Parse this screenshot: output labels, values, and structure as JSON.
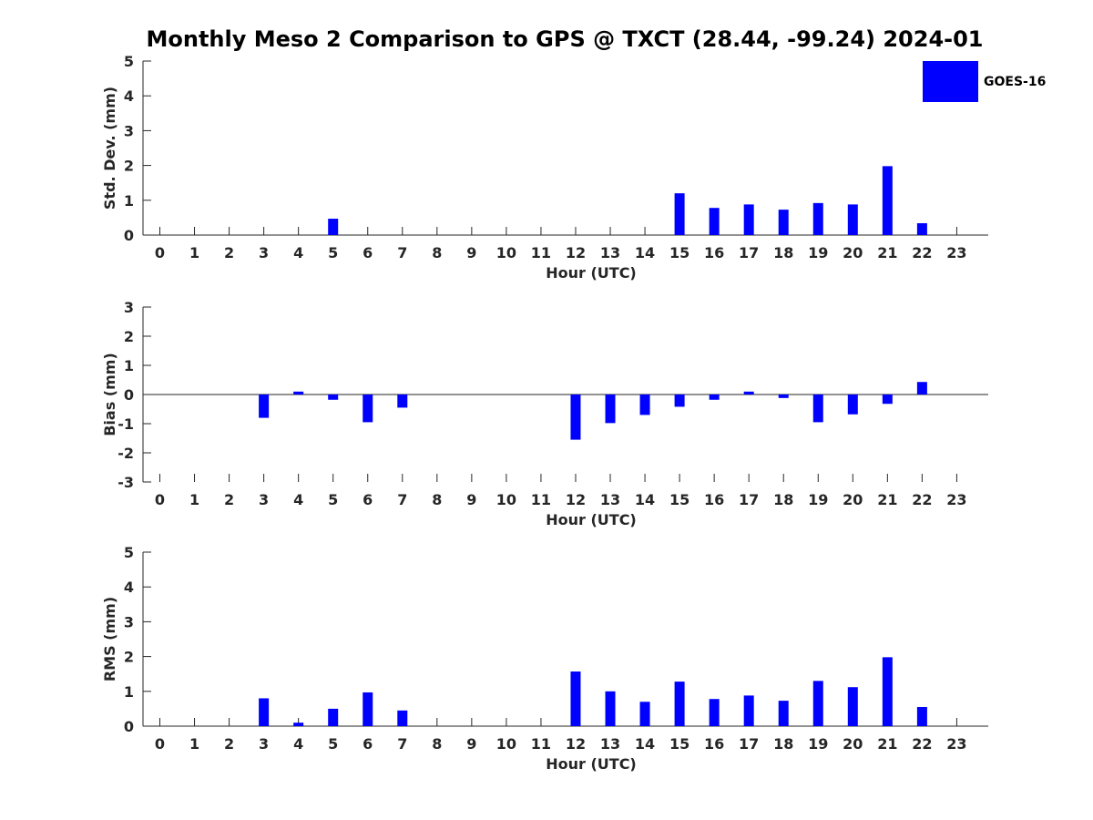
{
  "title": "Monthly Meso 2 Comparison to GPS @ TXCT (28.44, -99.24) 2024-01",
  "legend": {
    "label": "GOES-16",
    "color": "#0000ff",
    "position": "top-right"
  },
  "chart_data": [
    {
      "type": "bar",
      "xlabel": "Hour (UTC)",
      "ylabel": "Std. Dev. (mm)",
      "ylim": [
        0,
        5
      ],
      "yticks": [
        0,
        1,
        2,
        3,
        4,
        5
      ],
      "categories": [
        "0",
        "1",
        "2",
        "3",
        "4",
        "5",
        "6",
        "7",
        "8",
        "9",
        "10",
        "11",
        "12",
        "13",
        "14",
        "15",
        "16",
        "17",
        "18",
        "19",
        "20",
        "21",
        "22",
        "23"
      ],
      "series": [
        {
          "name": "GOES-16",
          "values": [
            null,
            null,
            null,
            null,
            null,
            0.47,
            null,
            null,
            null,
            null,
            null,
            null,
            null,
            null,
            null,
            1.2,
            0.78,
            0.88,
            0.73,
            0.92,
            0.88,
            1.98,
            0.34,
            null
          ]
        }
      ],
      "grid": false
    },
    {
      "type": "bar",
      "xlabel": "Hour (UTC)",
      "ylabel": "Bias (mm)",
      "ylim": [
        -3,
        3
      ],
      "yticks": [
        -3,
        -2,
        -1,
        0,
        1,
        2,
        3
      ],
      "categories": [
        "0",
        "1",
        "2",
        "3",
        "4",
        "5",
        "6",
        "7",
        "8",
        "9",
        "10",
        "11",
        "12",
        "13",
        "14",
        "15",
        "16",
        "17",
        "18",
        "19",
        "20",
        "21",
        "22",
        "23"
      ],
      "series": [
        {
          "name": "GOES-16",
          "values": [
            null,
            null,
            null,
            -0.8,
            0.1,
            -0.18,
            -0.95,
            -0.45,
            null,
            null,
            null,
            null,
            -1.55,
            -0.98,
            -0.7,
            -0.42,
            -0.18,
            0.1,
            -0.12,
            -0.95,
            -0.68,
            -0.32,
            0.43,
            null
          ]
        }
      ],
      "grid": false
    },
    {
      "type": "bar",
      "xlabel": "Hour (UTC)",
      "ylabel": "RMS (mm)",
      "ylim": [
        0,
        5
      ],
      "yticks": [
        0,
        1,
        2,
        3,
        4,
        5
      ],
      "categories": [
        "0",
        "1",
        "2",
        "3",
        "4",
        "5",
        "6",
        "7",
        "8",
        "9",
        "10",
        "11",
        "12",
        "13",
        "14",
        "15",
        "16",
        "17",
        "18",
        "19",
        "20",
        "21",
        "22",
        "23"
      ],
      "series": [
        {
          "name": "GOES-16",
          "values": [
            null,
            null,
            null,
            0.8,
            0.1,
            0.5,
            0.97,
            0.45,
            null,
            null,
            null,
            null,
            1.57,
            1.0,
            0.7,
            1.28,
            0.78,
            0.88,
            0.73,
            1.3,
            1.12,
            1.98,
            0.55,
            null
          ]
        }
      ],
      "grid": false
    }
  ]
}
